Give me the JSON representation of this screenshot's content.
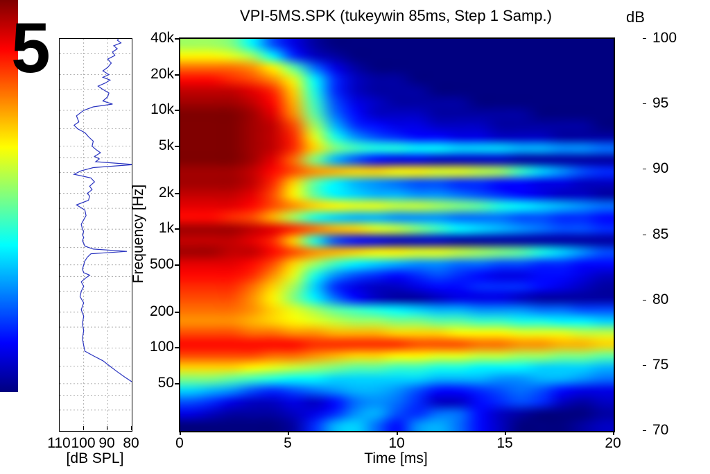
{
  "figure_number": "5",
  "colorbar": {
    "label": "dB",
    "ticks": [
      100,
      95,
      90,
      85,
      80,
      75,
      70
    ],
    "range": [
      70,
      100
    ],
    "colormap": "jet"
  },
  "chart_data": [
    {
      "type": "line",
      "name": "frequency-response-side-panel",
      "xlabel": "[dB SPL]",
      "x_ticks": [
        110,
        100,
        90,
        80
      ],
      "x_range": [
        110,
        80
      ],
      "y_axis": "frequency-log-shared",
      "freq_range_hz": [
        20,
        40000
      ],
      "curve_color": "#2b35c0",
      "grid": "dashed",
      "grid_x_db": [
        100,
        90
      ],
      "grid_freqs_hz": [
        30000,
        20000,
        15000,
        10000,
        7000,
        5000,
        4000,
        3000,
        2000,
        1500,
        1000,
        700,
        500,
        400,
        300,
        200,
        150,
        100,
        70,
        50,
        40,
        30
      ],
      "points_hz_db": [
        [
          52,
          80
        ],
        [
          57,
          83
        ],
        [
          63,
          86
        ],
        [
          70,
          89
        ],
        [
          78,
          92
        ],
        [
          86,
          96
        ],
        [
          94,
          99.5
        ],
        [
          105,
          100
        ],
        [
          120,
          100.5
        ],
        [
          140,
          100
        ],
        [
          160,
          100.5
        ],
        [
          185,
          100
        ],
        [
          210,
          101
        ],
        [
          240,
          100
        ],
        [
          270,
          101.5
        ],
        [
          300,
          101
        ],
        [
          330,
          100
        ],
        [
          360,
          101
        ],
        [
          390,
          99
        ],
        [
          410,
          97.5
        ],
        [
          430,
          100
        ],
        [
          460,
          100.5
        ],
        [
          500,
          100
        ],
        [
          540,
          99.5
        ],
        [
          580,
          98.5
        ],
        [
          620,
          97
        ],
        [
          650,
          82
        ],
        [
          680,
          96
        ],
        [
          720,
          99.5
        ],
        [
          760,
          100
        ],
        [
          800,
          100.5
        ],
        [
          850,
          100
        ],
        [
          900,
          100.5
        ],
        [
          950,
          100
        ],
        [
          1000,
          100.5
        ],
        [
          1100,
          101
        ],
        [
          1200,
          100
        ],
        [
          1300,
          99
        ],
        [
          1450,
          99.5
        ],
        [
          1600,
          103
        ],
        [
          1750,
          98
        ],
        [
          1900,
          97.5
        ],
        [
          2000,
          98.5
        ],
        [
          2150,
          96.5
        ],
        [
          2300,
          97.5
        ],
        [
          2500,
          95.5
        ],
        [
          2700,
          97
        ],
        [
          2900,
          104
        ],
        [
          3100,
          101
        ],
        [
          3300,
          96
        ],
        [
          3500,
          79
        ],
        [
          3700,
          95
        ],
        [
          3900,
          93.5
        ],
        [
          4100,
          95.5
        ],
        [
          4400,
          93
        ],
        [
          4700,
          95
        ],
        [
          5000,
          96.5
        ],
        [
          5500,
          96
        ],
        [
          6000,
          98
        ],
        [
          6500,
          99.5
        ],
        [
          7000,
          102.5
        ],
        [
          7500,
          104
        ],
        [
          8000,
          102
        ],
        [
          9000,
          103
        ],
        [
          10000,
          100
        ],
        [
          10700,
          96
        ],
        [
          11300,
          88
        ],
        [
          12000,
          92
        ],
        [
          13000,
          90
        ],
        [
          14000,
          89.5
        ],
        [
          15000,
          92
        ],
        [
          16000,
          94
        ],
        [
          17000,
          91
        ],
        [
          18000,
          89
        ],
        [
          19000,
          92
        ],
        [
          20000,
          89.5
        ],
        [
          21500,
          92
        ],
        [
          23000,
          90
        ],
        [
          25000,
          88.5
        ],
        [
          27000,
          90
        ],
        [
          29000,
          87
        ],
        [
          31000,
          88
        ],
        [
          33000,
          86
        ],
        [
          35000,
          87.5
        ],
        [
          37000,
          84.5
        ],
        [
          39000,
          86
        ],
        [
          40000,
          85.5
        ]
      ]
    },
    {
      "type": "heatmap",
      "name": "spectral-decay-spectrogram",
      "title": "VPI-5MS.SPK (tukeywin 85ms, Step 1 Samp.)",
      "xlabel": "Time [ms]",
      "ylabel": "Frequency [Hz]",
      "x_ticks": [
        0,
        5,
        10,
        15,
        20
      ],
      "x_range_ms": [
        0,
        20
      ],
      "y_ticks": [
        {
          "label": "40k",
          "hz": 40000
        },
        {
          "label": "20k",
          "hz": 20000
        },
        {
          "label": "10k",
          "hz": 10000
        },
        {
          "label": "5k",
          "hz": 5000
        },
        {
          "label": "2k",
          "hz": 2000
        },
        {
          "label": "1k",
          "hz": 1000
        },
        {
          "label": "500",
          "hz": 500
        },
        {
          "label": "200",
          "hz": 200
        },
        {
          "label": "100",
          "hz": 100
        },
        {
          "label": "50",
          "hz": 50
        }
      ],
      "freq_range_hz": [
        20,
        40000
      ],
      "value_range_db": [
        70,
        100
      ],
      "colormap": "jet",
      "times_ms": [
        0,
        1,
        2,
        3,
        4,
        5,
        6,
        7,
        8,
        9,
        10,
        11,
        12,
        13,
        14,
        15,
        16,
        17,
        18,
        19,
        20
      ],
      "freqs_hz": [
        40000,
        31748,
        25198,
        20000,
        15874,
        12599,
        10000,
        7937,
        6300,
        5000,
        3969,
        3150,
        2500,
        1984,
        1575,
        1250,
        992,
        787,
        625,
        496,
        394,
        312,
        248,
        197,
        156,
        124,
        98,
        78,
        62,
        49,
        39,
        31,
        25,
        20
      ],
      "values_db": [
        [
          86,
          86,
          85,
          81,
          76,
          73,
          71,
          70,
          70,
          70,
          70,
          70,
          70,
          70,
          70,
          70,
          70,
          70,
          70,
          70,
          70
        ],
        [
          89,
          89,
          88,
          86,
          81,
          75,
          72,
          71,
          70,
          70,
          70,
          70,
          70,
          70,
          70,
          70,
          70,
          70,
          70,
          70,
          70
        ],
        [
          93,
          93,
          93,
          92,
          89,
          84,
          77,
          73,
          71,
          70,
          70,
          70,
          70,
          70,
          70,
          70,
          70,
          70,
          70,
          70,
          70
        ],
        [
          96,
          96,
          95,
          94,
          92,
          88,
          81,
          75,
          72,
          71,
          71,
          70,
          70,
          70,
          70,
          70,
          70,
          70,
          70,
          70,
          70
        ],
        [
          98,
          98,
          98,
          97,
          95,
          90,
          82,
          75,
          72,
          71,
          71,
          71,
          70,
          70,
          70,
          70,
          70,
          70,
          70,
          70,
          70
        ],
        [
          99,
          99,
          99,
          98,
          96,
          91,
          83,
          76,
          73,
          72,
          71,
          71,
          71,
          71,
          70,
          70,
          70,
          70,
          70,
          70,
          70
        ],
        [
          100,
          100,
          100,
          99,
          97,
          92,
          84,
          77,
          74,
          72,
          72,
          72,
          71,
          71,
          71,
          71,
          71,
          70,
          70,
          70,
          70
        ],
        [
          100,
          100,
          100,
          99,
          98,
          94,
          86,
          79,
          75,
          74,
          73,
          73,
          72,
          72,
          72,
          71,
          71,
          71,
          71,
          71,
          70
        ],
        [
          100,
          100,
          100,
          99,
          98,
          95,
          88,
          82,
          78,
          76,
          75,
          74,
          74,
          73,
          73,
          72,
          72,
          72,
          71,
          71,
          71
        ],
        [
          100,
          100,
          100,
          99,
          98,
          95,
          90,
          85,
          83,
          82,
          82,
          81,
          81,
          80,
          80,
          80,
          79,
          79,
          78,
          78,
          77
        ],
        [
          100,
          100,
          100,
          99,
          97,
          93,
          85,
          79,
          76,
          74,
          73,
          73,
          72,
          72,
          72,
          72,
          71,
          71,
          71,
          71,
          71
        ],
        [
          99,
          99,
          99,
          98,
          96,
          94,
          92,
          91,
          90,
          90,
          89,
          89,
          88,
          88,
          87,
          86,
          83,
          80,
          78,
          76,
          75
        ],
        [
          99,
          99,
          99,
          98,
          95,
          90,
          84,
          81,
          79,
          78,
          77,
          76,
          76,
          75,
          75,
          74,
          74,
          73,
          73,
          72,
          72
        ],
        [
          98,
          98,
          98,
          97,
          94,
          89,
          84,
          81,
          80,
          79,
          79,
          78,
          78,
          77,
          76,
          75,
          74,
          73,
          72,
          72,
          71
        ],
        [
          97,
          97,
          97,
          96,
          94,
          92,
          90,
          89,
          88,
          88,
          87,
          87,
          86,
          85,
          84,
          82,
          81,
          80,
          79,
          78,
          77
        ],
        [
          96,
          96,
          95,
          94,
          91,
          86,
          82,
          80,
          79,
          79,
          78,
          78,
          78,
          77,
          77,
          77,
          76,
          76,
          75,
          75,
          74
        ],
        [
          99,
          99,
          99,
          98,
          97,
          95,
          93,
          91,
          90,
          88,
          87,
          85,
          83,
          81,
          80,
          79,
          78,
          77,
          76,
          76,
          75
        ],
        [
          98,
          98,
          98,
          97,
          95,
          90,
          82,
          76,
          74,
          73,
          72,
          72,
          72,
          71,
          71,
          71,
          71,
          71,
          71,
          71,
          71
        ],
        [
          99,
          99,
          98,
          98,
          96,
          94,
          92,
          91,
          90,
          89,
          89,
          88,
          88,
          87,
          86,
          85,
          84,
          82,
          80,
          78,
          76
        ],
        [
          97,
          97,
          97,
          96,
          94,
          90,
          86,
          83,
          81,
          80,
          79,
          78,
          78,
          77,
          77,
          76,
          76,
          75,
          75,
          74,
          74
        ],
        [
          96,
          96,
          96,
          95,
          92,
          88,
          82,
          78,
          76,
          75,
          74,
          75,
          76,
          75,
          74,
          73,
          73,
          74,
          74,
          73,
          72
        ],
        [
          95,
          95,
          95,
          93,
          90,
          86,
          80,
          75,
          73,
          72,
          72,
          73,
          74,
          74,
          75,
          75,
          75,
          74,
          73,
          72,
          71
        ],
        [
          94,
          94,
          94,
          92,
          89,
          85,
          81,
          77,
          74,
          72,
          71,
          71,
          72,
          73,
          73,
          73,
          72,
          71,
          71,
          71,
          71
        ],
        [
          93,
          93,
          93,
          92,
          90,
          88,
          86,
          84,
          83,
          82,
          81,
          80,
          79,
          79,
          78,
          78,
          78,
          77,
          77,
          76,
          76
        ],
        [
          92,
          92,
          92,
          91,
          90,
          89,
          88,
          87,
          86,
          86,
          85,
          85,
          84,
          84,
          83,
          83,
          82,
          82,
          81,
          81,
          80
        ],
        [
          94,
          94,
          94,
          93,
          93,
          92,
          92,
          91,
          91,
          91,
          90,
          90,
          90,
          89,
          89,
          89,
          88,
          88,
          88,
          87,
          87
        ],
        [
          96,
          96,
          96,
          96,
          96,
          96,
          95,
          95,
          95,
          95,
          95,
          94,
          94,
          94,
          93,
          93,
          92,
          92,
          91,
          91,
          90
        ],
        [
          94,
          94,
          94,
          94,
          93,
          93,
          92,
          91,
          90,
          90,
          89,
          89,
          88,
          88,
          87,
          87,
          86,
          86,
          85,
          85,
          84
        ],
        [
          90,
          90,
          90,
          89,
          88,
          87,
          86,
          85,
          84,
          84,
          83,
          83,
          82,
          82,
          81,
          81,
          81,
          80,
          80,
          80,
          79
        ],
        [
          85,
          85,
          84,
          83,
          82,
          81,
          81,
          80,
          80,
          80,
          80,
          80,
          79,
          79,
          79,
          78,
          78,
          79,
          79,
          78,
          77
        ],
        [
          80,
          79,
          78,
          76,
          75,
          76,
          77,
          78,
          79,
          79,
          78,
          76,
          74,
          74,
          75,
          76,
          77,
          76,
          74,
          73,
          73
        ],
        [
          76,
          75,
          73,
          72,
          72,
          73,
          72,
          74,
          77,
          78,
          77,
          75,
          72,
          72,
          74,
          75,
          76,
          75,
          72,
          71,
          72
        ],
        [
          73,
          72,
          71,
          71,
          71,
          72,
          73,
          75,
          78,
          79,
          76,
          75,
          77,
          77,
          74,
          72,
          71,
          70,
          70,
          70,
          71
        ],
        [
          70,
          70,
          70,
          70,
          70,
          71,
          75,
          79,
          80,
          77,
          74,
          78,
          79,
          77,
          74,
          72,
          70,
          70,
          70,
          71,
          72
        ]
      ]
    }
  ]
}
